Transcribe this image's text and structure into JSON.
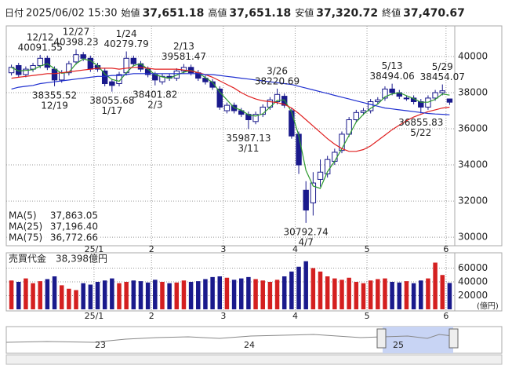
{
  "header": [
    {
      "label": "日付",
      "value": "2025/06/02 15:30",
      "color": "#222222"
    },
    {
      "label": "始値",
      "value": "37,651.18",
      "color": "#222222"
    },
    {
      "label": "高値",
      "value": "37,651.18",
      "color": "#e02020"
    },
    {
      "label": "安値",
      "value": "37,320.72",
      "color": "#1a9a1a"
    },
    {
      "label": "終値",
      "value": "37,470.67",
      "color": "#222222"
    }
  ],
  "chart_data": [
    {
      "type": "candlestick",
      "categories": [
        null,
        null,
        null,
        null,
        null,
        null,
        null,
        null,
        null,
        null,
        null,
        null,
        "25/1",
        null,
        null,
        null,
        null,
        null,
        null,
        null,
        "2",
        null,
        null,
        null,
        null,
        null,
        null,
        null,
        null,
        null,
        "3",
        null,
        null,
        null,
        null,
        null,
        null,
        null,
        null,
        null,
        "4",
        null,
        null,
        null,
        null,
        null,
        null,
        null,
        null,
        null,
        "5",
        null,
        null,
        null,
        null,
        null,
        null,
        null,
        null,
        null,
        null,
        "6"
      ],
      "open": [
        39100,
        39500,
        39000,
        39300,
        39500,
        39900,
        39300,
        38700,
        39100,
        39700,
        40100,
        39900,
        39500,
        39200,
        38600,
        38500,
        39100,
        39900,
        39600,
        39300,
        39000,
        38600,
        38900,
        38800,
        39200,
        39400,
        39100,
        38800,
        38600,
        38200,
        37000,
        37300,
        37000,
        36800,
        36400,
        36800,
        37200,
        37500,
        37800,
        37000,
        35700,
        32600,
        31900,
        33200,
        33500,
        34200,
        34800,
        35700,
        36500,
        36900,
        37000,
        37500,
        37700,
        38200,
        38000,
        37700,
        37700,
        37500,
        37200,
        37700,
        38000,
        37651.18
      ],
      "high": [
        39550,
        39650,
        39450,
        39650,
        40091.55,
        40050,
        39450,
        39250,
        39750,
        40398.23,
        40250,
        40050,
        39650,
        39350,
        38750,
        39150,
        40279.79,
        40050,
        39750,
        39450,
        39150,
        39050,
        39050,
        39350,
        39581.47,
        39550,
        39250,
        38950,
        38750,
        38350,
        37450,
        37450,
        37150,
        36950,
        36950,
        37350,
        37750,
        38220.69,
        37950,
        37150,
        35850,
        33100,
        33600,
        34300,
        34500,
        34900,
        35850,
        36650,
        37050,
        37150,
        37650,
        37750,
        38350,
        38494.06,
        38150,
        37850,
        37850,
        37650,
        37850,
        38150,
        38454.07,
        37651.18
      ],
      "low": [
        38950,
        38850,
        38850,
        39150,
        39350,
        39250,
        38355.52,
        38550,
        38950,
        39550,
        39750,
        39150,
        39150,
        38350,
        38055.68,
        38350,
        38950,
        39450,
        39150,
        38850,
        38401.82,
        38450,
        38650,
        38650,
        39050,
        38950,
        38650,
        38450,
        38150,
        37050,
        36850,
        36850,
        36650,
        35987.13,
        36250,
        36650,
        37050,
        37350,
        37150,
        35450,
        33500,
        30792.74,
        31200,
        32800,
        33300,
        34000,
        34650,
        35550,
        36350,
        36750,
        36850,
        37350,
        37550,
        37850,
        37650,
        37550,
        37350,
        36855.83,
        37050,
        37550,
        37850,
        37320.72
      ],
      "close": [
        39400,
        39000,
        39300,
        39500,
        39900,
        39400,
        38700,
        39100,
        39600,
        40100,
        39900,
        39300,
        39300,
        38500,
        38400,
        39000,
        39900,
        39600,
        39300,
        39000,
        38700,
        38900,
        38800,
        39200,
        39400,
        39100,
        38800,
        38600,
        38300,
        37200,
        37300,
        37000,
        36800,
        36500,
        36800,
        37200,
        37600,
        37900,
        37300,
        35600,
        34000,
        31500,
        33000,
        33600,
        34300,
        34700,
        35700,
        36500,
        36900,
        37000,
        37500,
        37600,
        38200,
        38000,
        37800,
        37700,
        37500,
        37200,
        37700,
        38000,
        38100,
        37470.67
      ],
      "up_color": "#ffffff",
      "down_color": "#1a1a8c",
      "series": [
        {
          "name": "MA(5)",
          "color": "#2e9a2e",
          "value_label": "37,863.05",
          "values": [
            39400,
            39200,
            39230,
            39270,
            39470,
            39600,
            39330,
            39070,
            39130,
            39600,
            39870,
            39770,
            39500,
            39030,
            38730,
            38630,
            39100,
            39500,
            39600,
            39300,
            39000,
            38870,
            38800,
            38970,
            39130,
            39230,
            39100,
            38830,
            38570,
            38030,
            37600,
            37170,
            37030,
            36770,
            36700,
            36830,
            37200,
            37570,
            37600,
            36930,
            35630,
            33700,
            32830,
            32700,
            33630,
            34200,
            34900,
            35630,
            36370,
            36800,
            37130,
            37370,
            37770,
            37930,
            38000,
            37830,
            37670,
            37470,
            37470,
            37630,
            37930,
            37863.05
          ]
        },
        {
          "name": "MA(25)",
          "color": "#e02020",
          "value_label": "37,196.40",
          "values": [
            38800,
            38850,
            38900,
            38950,
            39000,
            39050,
            39050,
            39100,
            39150,
            39200,
            39250,
            39300,
            39350,
            39350,
            39350,
            39300,
            39350,
            39400,
            39400,
            39350,
            39300,
            39300,
            39300,
            39300,
            39250,
            39200,
            39100,
            39000,
            38850,
            38650,
            38450,
            38250,
            38000,
            37800,
            37650,
            37550,
            37500,
            37450,
            37350,
            37150,
            36850,
            36500,
            36150,
            35800,
            35450,
            35150,
            34900,
            34750,
            34750,
            34850,
            35050,
            35350,
            35650,
            35950,
            36200,
            36450,
            36650,
            36800,
            36950,
            37050,
            37150,
            37196.4
          ]
        },
        {
          "name": "MA(75)",
          "color": "#2030d0",
          "value_label": "36,772.66",
          "values": [
            38200,
            38300,
            38350,
            38400,
            38500,
            38550,
            38600,
            38650,
            38700,
            38750,
            38800,
            38850,
            38900,
            38900,
            38950,
            38950,
            39000,
            39050,
            39050,
            39050,
            39050,
            39050,
            39050,
            39050,
            39050,
            39050,
            39050,
            39000,
            39000,
            38950,
            38900,
            38850,
            38800,
            38750,
            38700,
            38650,
            38600,
            38550,
            38500,
            38450,
            38350,
            38250,
            38150,
            38050,
            37950,
            37850,
            37750,
            37650,
            37550,
            37450,
            37350,
            37250,
            37150,
            37100,
            37050,
            37000,
            36950,
            36900,
            36850,
            36820,
            36800,
            36772.66
          ]
        }
      ],
      "annotations": [
        {
          "date": "12/12",
          "value": 40091.55,
          "at": "high"
        },
        {
          "date": "12/19",
          "value": 38355.52,
          "at": "low"
        },
        {
          "date": "12/27",
          "value": 40398.23,
          "at": "high"
        },
        {
          "date": "1/17",
          "value": 38055.68,
          "at": "low"
        },
        {
          "date": "1/24",
          "value": 40279.79,
          "at": "high"
        },
        {
          "date": "2/3",
          "value": 38401.82,
          "at": "low"
        },
        {
          "date": "2/13",
          "value": 39581.47,
          "at": "high"
        },
        {
          "date": "3/11",
          "value": 35987.13,
          "at": "low"
        },
        {
          "date": "3/26",
          "value": 38220.69,
          "at": "high"
        },
        {
          "date": "4/7",
          "value": 30792.74,
          "at": "low"
        },
        {
          "date": "5/13",
          "value": 38494.06,
          "at": "high"
        },
        {
          "date": "5/22",
          "value": 36855.83,
          "at": "low"
        },
        {
          "date": "5/29",
          "value": 38454.07,
          "at": "high"
        }
      ],
      "ylim": [
        29570,
        41650
      ],
      "yticks": [
        30000,
        32000,
        34000,
        36000,
        38000,
        40000
      ],
      "grid": true
    },
    {
      "type": "bar",
      "label": "売買代金　38,398億円",
      "unit": "(億円)",
      "values": [
        42000,
        40000,
        45000,
        38000,
        41000,
        44000,
        48000,
        35000,
        30000,
        28000,
        38000,
        36000,
        40000,
        42000,
        45000,
        38000,
        40000,
        42000,
        41000,
        39000,
        43000,
        40000,
        38000,
        39000,
        42000,
        40000,
        41000,
        44000,
        47000,
        48000,
        46000,
        43000,
        45000,
        47000,
        44000,
        42000,
        40000,
        43000,
        48000,
        55000,
        62000,
        70000,
        60000,
        55000,
        48000,
        45000,
        43000,
        46000,
        40000,
        38000,
        42000,
        44000,
        45000,
        40000,
        39000,
        41000,
        38000,
        42000,
        45000,
        68000,
        50000,
        38398
      ],
      "up_color": "#d42020",
      "down_color": "#1a1a8c",
      "ylim": [
        0,
        80000
      ],
      "yticks": [
        20000,
        40000,
        60000
      ],
      "grid": true
    }
  ],
  "navigator": {
    "labels": [
      "23",
      "24",
      "25"
    ]
  }
}
